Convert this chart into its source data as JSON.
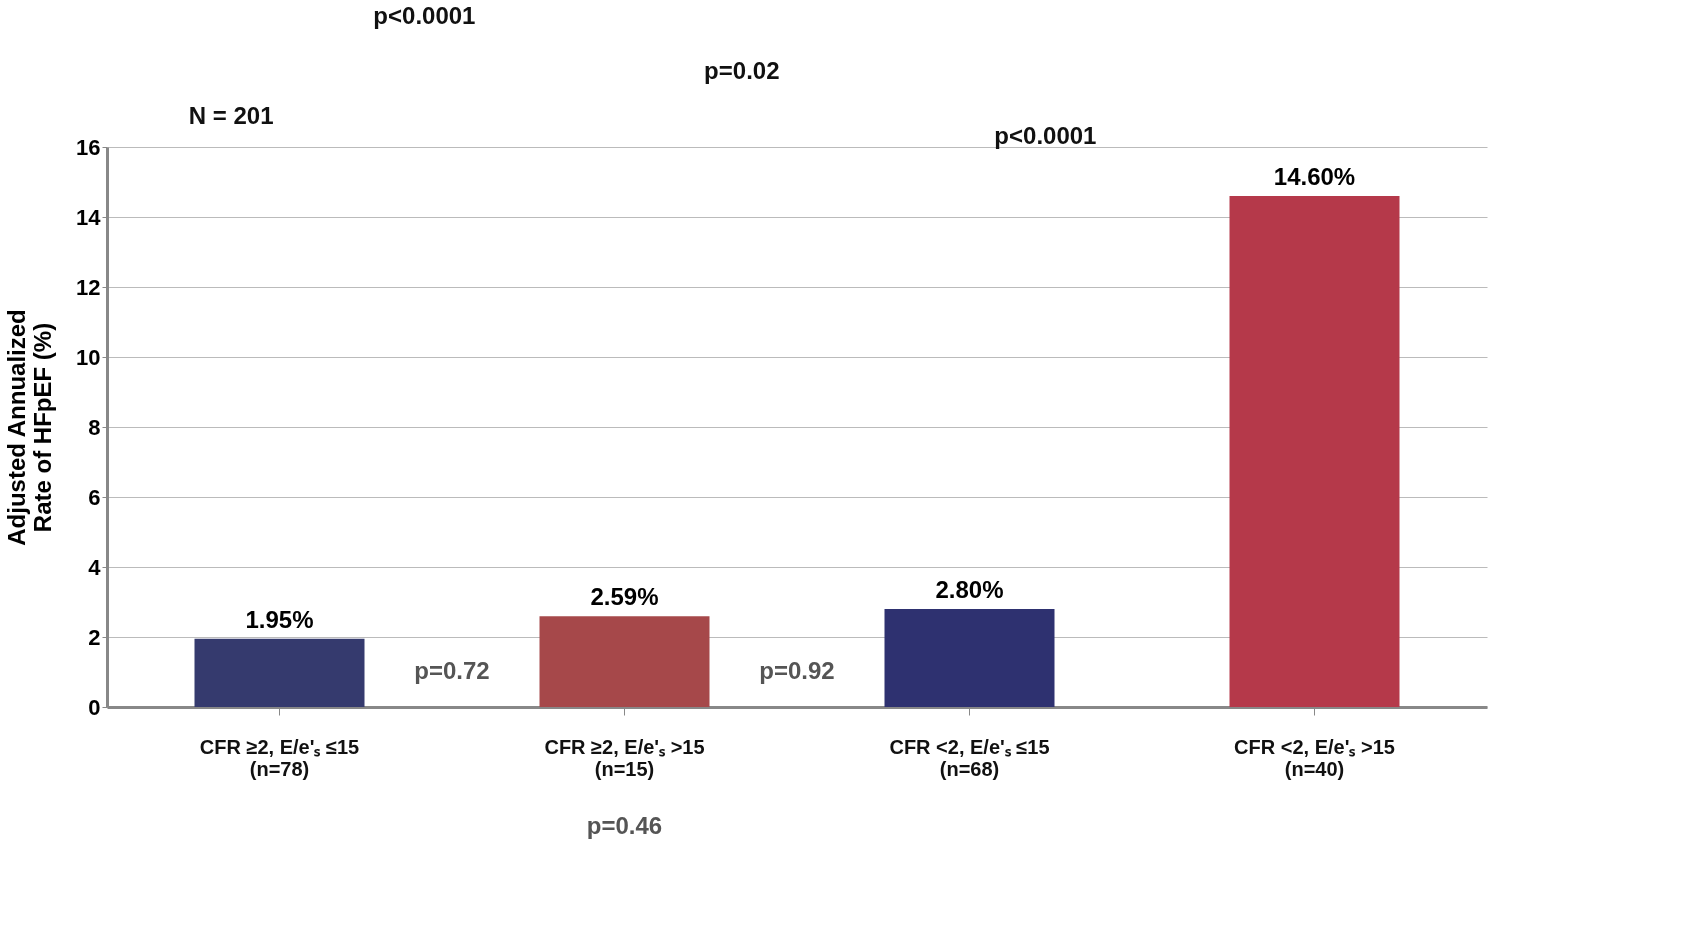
{
  "chart_data": {
    "type": "bar",
    "ylabel": "Adjusted Annualized\nRate of HFpEF (%)",
    "categories": [
      "CFR ≥2, E/e'ₛ ≤15\n(n=78)",
      "CFR ≥2, E/e'ₛ >15\n(n=15)",
      "CFR <2, E/e'ₛ ≤15\n(n=68)",
      "CFR <2, E/e'ₛ >15\n(n=40)"
    ],
    "values": [
      1.95,
      2.59,
      2.8,
      14.6
    ],
    "colors": [
      "#353a6e",
      "#a6484a",
      "#2e3170",
      "#b5394a"
    ],
    "value_labels": [
      "1.95%",
      "2.59%",
      "2.80%",
      "14.60%"
    ],
    "ylim": [
      0,
      16
    ],
    "yticks": [
      0,
      2,
      4,
      6,
      8,
      10,
      12,
      14,
      16
    ],
    "grid": "y",
    "annotations": [
      "N = 201",
      "p<0.0001",
      "p=0.02",
      "p<0.0001",
      "p=0.72",
      "p=0.92",
      "p=0.46"
    ]
  }
}
